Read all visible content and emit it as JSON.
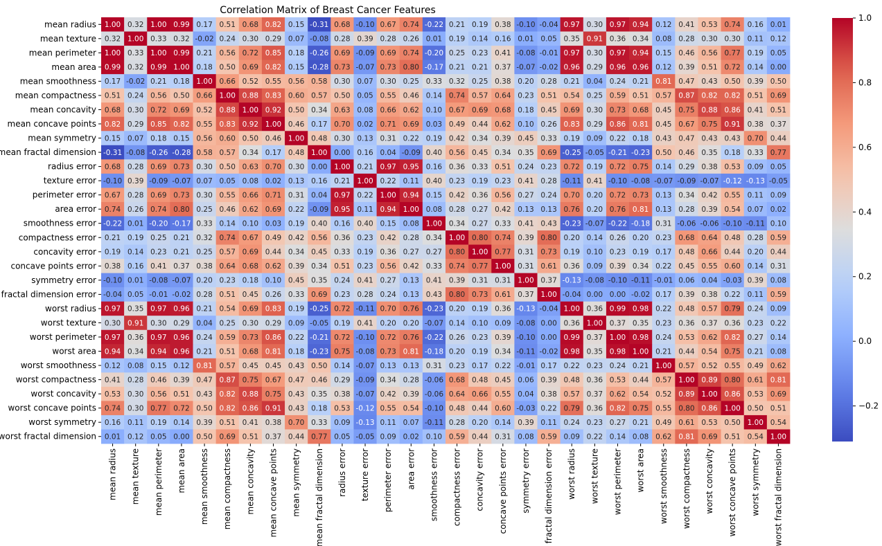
{
  "chart_data": {
    "type": "heatmap",
    "title": "Correlation Matrix of Breast Cancer Features",
    "labels": [
      "mean radius",
      "mean texture",
      "mean perimeter",
      "mean area",
      "mean smoothness",
      "mean compactness",
      "mean concavity",
      "mean concave points",
      "mean symmetry",
      "mean fractal dimension",
      "radius error",
      "texture error",
      "perimeter error",
      "area error",
      "smoothness error",
      "compactness error",
      "concavity error",
      "concave points error",
      "symmetry error",
      "fractal dimension error",
      "worst radius",
      "worst texture",
      "worst perimeter",
      "worst area",
      "worst smoothness",
      "worst compactness",
      "worst concavity",
      "worst concave points",
      "worst symmetry",
      "worst fractal dimension"
    ],
    "values": [
      [
        1.0,
        0.32,
        1.0,
        0.99,
        0.17,
        0.51,
        0.68,
        0.82,
        0.15,
        -0.31,
        0.68,
        -0.1,
        0.67,
        0.74,
        -0.22,
        0.21,
        0.19,
        0.38,
        -0.1,
        -0.04,
        0.97,
        0.3,
        0.97,
        0.94,
        0.12,
        0.41,
        0.53,
        0.74,
        0.16,
        0.01
      ],
      [
        0.32,
        1.0,
        0.33,
        0.32,
        -0.02,
        0.24,
        0.3,
        0.29,
        0.07,
        -0.08,
        0.28,
        0.39,
        0.28,
        0.26,
        0.01,
        0.19,
        0.14,
        0.16,
        0.01,
        0.05,
        0.35,
        0.91,
        0.36,
        0.34,
        0.08,
        0.28,
        0.3,
        0.3,
        0.11,
        0.12
      ],
      [
        1.0,
        0.33,
        1.0,
        0.99,
        0.21,
        0.56,
        0.72,
        0.85,
        0.18,
        -0.26,
        0.69,
        -0.09,
        0.69,
        0.74,
        -0.2,
        0.25,
        0.23,
        0.41,
        -0.08,
        -0.01,
        0.97,
        0.3,
        0.97,
        0.94,
        0.15,
        0.46,
        0.56,
        0.77,
        0.19,
        0.05
      ],
      [
        0.99,
        0.32,
        0.99,
        1.0,
        0.18,
        0.5,
        0.69,
        0.82,
        0.15,
        -0.28,
        0.73,
        -0.07,
        0.73,
        0.8,
        -0.17,
        0.21,
        0.21,
        0.37,
        -0.07,
        -0.02,
        0.96,
        0.29,
        0.96,
        0.96,
        0.12,
        0.39,
        0.51,
        0.72,
        0.14,
        0.0
      ],
      [
        0.17,
        -0.02,
        0.21,
        0.18,
        1.0,
        0.66,
        0.52,
        0.55,
        0.56,
        0.58,
        0.3,
        0.07,
        0.3,
        0.25,
        0.33,
        0.32,
        0.25,
        0.38,
        0.2,
        0.28,
        0.21,
        0.04,
        0.24,
        0.21,
        0.81,
        0.47,
        0.43,
        0.5,
        0.39,
        0.5
      ],
      [
        0.51,
        0.24,
        0.56,
        0.5,
        0.66,
        1.0,
        0.88,
        0.83,
        0.6,
        0.57,
        0.5,
        0.05,
        0.55,
        0.46,
        0.14,
        0.74,
        0.57,
        0.64,
        0.23,
        0.51,
        0.54,
        0.25,
        0.59,
        0.51,
        0.57,
        0.87,
        0.82,
        0.82,
        0.51,
        0.69
      ],
      [
        0.68,
        0.3,
        0.72,
        0.69,
        0.52,
        0.88,
        1.0,
        0.92,
        0.5,
        0.34,
        0.63,
        0.08,
        0.66,
        0.62,
        0.1,
        0.67,
        0.69,
        0.68,
        0.18,
        0.45,
        0.69,
        0.3,
        0.73,
        0.68,
        0.45,
        0.75,
        0.88,
        0.86,
        0.41,
        0.51
      ],
      [
        0.82,
        0.29,
        0.85,
        0.82,
        0.55,
        0.83,
        0.92,
        1.0,
        0.46,
        0.17,
        0.7,
        0.02,
        0.71,
        0.69,
        0.03,
        0.49,
        0.44,
        0.62,
        0.1,
        0.26,
        0.83,
        0.29,
        0.86,
        0.81,
        0.45,
        0.67,
        0.75,
        0.91,
        0.38,
        0.37
      ],
      [
        0.15,
        0.07,
        0.18,
        0.15,
        0.56,
        0.6,
        0.5,
        0.46,
        1.0,
        0.48,
        0.3,
        0.13,
        0.31,
        0.22,
        0.19,
        0.42,
        0.34,
        0.39,
        0.45,
        0.33,
        0.19,
        0.09,
        0.22,
        0.18,
        0.43,
        0.47,
        0.43,
        0.43,
        0.7,
        0.44
      ],
      [
        -0.31,
        -0.08,
        -0.26,
        -0.28,
        0.58,
        0.57,
        0.34,
        0.17,
        0.48,
        1.0,
        0.0,
        0.16,
        0.04,
        -0.09,
        0.4,
        0.56,
        0.45,
        0.34,
        0.35,
        0.69,
        -0.25,
        -0.05,
        -0.21,
        -0.23,
        0.5,
        0.46,
        0.35,
        0.18,
        0.33,
        0.77
      ],
      [
        0.68,
        0.28,
        0.69,
        0.73,
        0.3,
        0.5,
        0.63,
        0.7,
        0.3,
        0.0,
        1.0,
        0.21,
        0.97,
        0.95,
        0.16,
        0.36,
        0.33,
        0.51,
        0.24,
        0.23,
        0.72,
        0.19,
        0.72,
        0.75,
        0.14,
        0.29,
        0.38,
        0.53,
        0.09,
        0.05
      ],
      [
        -0.1,
        0.39,
        -0.09,
        -0.07,
        0.07,
        0.05,
        0.08,
        0.02,
        0.13,
        0.16,
        0.21,
        1.0,
        0.22,
        0.11,
        0.4,
        0.23,
        0.19,
        0.23,
        0.41,
        0.28,
        -0.11,
        0.41,
        -0.1,
        -0.08,
        -0.07,
        -0.09,
        -0.07,
        -0.12,
        -0.13,
        -0.05
      ],
      [
        0.67,
        0.28,
        0.69,
        0.73,
        0.3,
        0.55,
        0.66,
        0.71,
        0.31,
        0.04,
        0.97,
        0.22,
        1.0,
        0.94,
        0.15,
        0.42,
        0.36,
        0.56,
        0.27,
        0.24,
        0.7,
        0.2,
        0.72,
        0.73,
        0.13,
        0.34,
        0.42,
        0.55,
        0.11,
        0.09
      ],
      [
        0.74,
        0.26,
        0.74,
        0.8,
        0.25,
        0.46,
        0.62,
        0.69,
        0.22,
        -0.09,
        0.95,
        0.11,
        0.94,
        1.0,
        0.08,
        0.28,
        0.27,
        0.42,
        0.13,
        0.13,
        0.76,
        0.2,
        0.76,
        0.81,
        0.13,
        0.28,
        0.39,
        0.54,
        0.07,
        0.02
      ],
      [
        -0.22,
        0.01,
        -0.2,
        -0.17,
        0.33,
        0.14,
        0.1,
        0.03,
        0.19,
        0.4,
        0.16,
        0.4,
        0.15,
        0.08,
        1.0,
        0.34,
        0.27,
        0.33,
        0.41,
        0.43,
        -0.23,
        -0.07,
        -0.22,
        -0.18,
        0.31,
        -0.06,
        -0.06,
        -0.1,
        -0.11,
        0.1
      ],
      [
        0.21,
        0.19,
        0.25,
        0.21,
        0.32,
        0.74,
        0.67,
        0.49,
        0.42,
        0.56,
        0.36,
        0.23,
        0.42,
        0.28,
        0.34,
        1.0,
        0.8,
        0.74,
        0.39,
        0.8,
        0.2,
        0.14,
        0.26,
        0.2,
        0.23,
        0.68,
        0.64,
        0.48,
        0.28,
        0.59
      ],
      [
        0.19,
        0.14,
        0.23,
        0.21,
        0.25,
        0.57,
        0.69,
        0.44,
        0.34,
        0.45,
        0.33,
        0.19,
        0.36,
        0.27,
        0.27,
        0.8,
        1.0,
        0.77,
        0.31,
        0.73,
        0.19,
        0.1,
        0.23,
        0.19,
        0.17,
        0.48,
        0.66,
        0.44,
        0.2,
        0.44
      ],
      [
        0.38,
        0.16,
        0.41,
        0.37,
        0.38,
        0.64,
        0.68,
        0.62,
        0.39,
        0.34,
        0.51,
        0.23,
        0.56,
        0.42,
        0.33,
        0.74,
        0.77,
        1.0,
        0.31,
        0.61,
        0.36,
        0.09,
        0.39,
        0.34,
        0.22,
        0.45,
        0.55,
        0.6,
        0.14,
        0.31
      ],
      [
        -0.1,
        0.01,
        -0.08,
        -0.07,
        0.2,
        0.23,
        0.18,
        0.1,
        0.45,
        0.35,
        0.24,
        0.41,
        0.27,
        0.13,
        0.41,
        0.39,
        0.31,
        0.31,
        1.0,
        0.37,
        -0.13,
        -0.08,
        -0.1,
        -0.11,
        -0.01,
        0.06,
        0.04,
        -0.03,
        0.39,
        0.08
      ],
      [
        -0.04,
        0.05,
        -0.01,
        -0.02,
        0.28,
        0.51,
        0.45,
        0.26,
        0.33,
        0.69,
        0.23,
        0.28,
        0.24,
        0.13,
        0.43,
        0.8,
        0.73,
        0.61,
        0.37,
        1.0,
        -0.04,
        -0.0,
        -0.0,
        -0.02,
        0.17,
        0.39,
        0.38,
        0.22,
        0.11,
        0.59
      ],
      [
        0.97,
        0.35,
        0.97,
        0.96,
        0.21,
        0.54,
        0.69,
        0.83,
        0.19,
        -0.25,
        0.72,
        -0.11,
        0.7,
        0.76,
        -0.23,
        0.2,
        0.19,
        0.36,
        -0.13,
        -0.04,
        1.0,
        0.36,
        0.99,
        0.98,
        0.22,
        0.48,
        0.57,
        0.79,
        0.24,
        0.09
      ],
      [
        0.3,
        0.91,
        0.3,
        0.29,
        0.04,
        0.25,
        0.3,
        0.29,
        0.09,
        -0.05,
        0.19,
        0.41,
        0.2,
        0.2,
        -0.07,
        0.14,
        0.1,
        0.09,
        -0.08,
        -0.0,
        0.36,
        1.0,
        0.37,
        0.35,
        0.23,
        0.36,
        0.37,
        0.36,
        0.23,
        0.22
      ],
      [
        0.97,
        0.36,
        0.97,
        0.96,
        0.24,
        0.59,
        0.73,
        0.86,
        0.22,
        -0.21,
        0.72,
        -0.1,
        0.72,
        0.76,
        -0.22,
        0.26,
        0.23,
        0.39,
        -0.1,
        -0.0,
        0.99,
        0.37,
        1.0,
        0.98,
        0.24,
        0.53,
        0.62,
        0.82,
        0.27,
        0.14
      ],
      [
        0.94,
        0.34,
        0.94,
        0.96,
        0.21,
        0.51,
        0.68,
        0.81,
        0.18,
        -0.23,
        0.75,
        -0.08,
        0.73,
        0.81,
        -0.18,
        0.2,
        0.19,
        0.34,
        -0.11,
        -0.02,
        0.98,
        0.35,
        0.98,
        1.0,
        0.21,
        0.44,
        0.54,
        0.75,
        0.21,
        0.08
      ],
      [
        0.12,
        0.08,
        0.15,
        0.12,
        0.81,
        0.57,
        0.45,
        0.45,
        0.43,
        0.5,
        0.14,
        -0.07,
        0.13,
        0.13,
        0.31,
        0.23,
        0.17,
        0.22,
        -0.01,
        0.17,
        0.22,
        0.23,
        0.24,
        0.21,
        1.0,
        0.57,
        0.52,
        0.55,
        0.49,
        0.62
      ],
      [
        0.41,
        0.28,
        0.46,
        0.39,
        0.47,
        0.87,
        0.75,
        0.67,
        0.47,
        0.46,
        0.29,
        -0.09,
        0.34,
        0.28,
        -0.06,
        0.68,
        0.48,
        0.45,
        0.06,
        0.39,
        0.48,
        0.36,
        0.53,
        0.44,
        0.57,
        1.0,
        0.89,
        0.8,
        0.61,
        0.81
      ],
      [
        0.53,
        0.3,
        0.56,
        0.51,
        0.43,
        0.82,
        0.88,
        0.75,
        0.43,
        0.35,
        0.38,
        -0.07,
        0.42,
        0.39,
        -0.06,
        0.64,
        0.66,
        0.55,
        0.04,
        0.38,
        0.57,
        0.37,
        0.62,
        0.54,
        0.52,
        0.89,
        1.0,
        0.86,
        0.53,
        0.69
      ],
      [
        0.74,
        0.3,
        0.77,
        0.72,
        0.5,
        0.82,
        0.86,
        0.91,
        0.43,
        0.18,
        0.53,
        -0.12,
        0.55,
        0.54,
        -0.1,
        0.48,
        0.44,
        0.6,
        -0.03,
        0.22,
        0.79,
        0.36,
        0.82,
        0.75,
        0.55,
        0.8,
        0.86,
        1.0,
        0.5,
        0.51
      ],
      [
        0.16,
        0.11,
        0.19,
        0.14,
        0.39,
        0.51,
        0.41,
        0.38,
        0.7,
        0.33,
        0.09,
        -0.13,
        0.11,
        0.07,
        -0.11,
        0.28,
        0.2,
        0.14,
        0.39,
        0.11,
        0.24,
        0.23,
        0.27,
        0.21,
        0.49,
        0.61,
        0.53,
        0.5,
        1.0,
        0.54
      ],
      [
        0.01,
        0.12,
        0.05,
        0.0,
        0.5,
        0.69,
        0.51,
        0.37,
        0.44,
        0.77,
        0.05,
        -0.05,
        0.09,
        0.02,
        0.1,
        0.59,
        0.44,
        0.31,
        0.08,
        0.59,
        0.09,
        0.22,
        0.14,
        0.08,
        0.62,
        0.81,
        0.69,
        0.51,
        0.54,
        1.0
      ]
    ],
    "vmin": -0.31,
    "vmax": 1.0,
    "colormap": "coolwarm",
    "colorbar_ticks": [
      1.0,
      0.8,
      0.6,
      0.4,
      0.2,
      0.0,
      -0.2
    ],
    "colorbar_tick_labels": [
      "1.0",
      "0.8",
      "0.6",
      "0.4",
      "0.2",
      "0.0",
      "−0.2"
    ]
  }
}
